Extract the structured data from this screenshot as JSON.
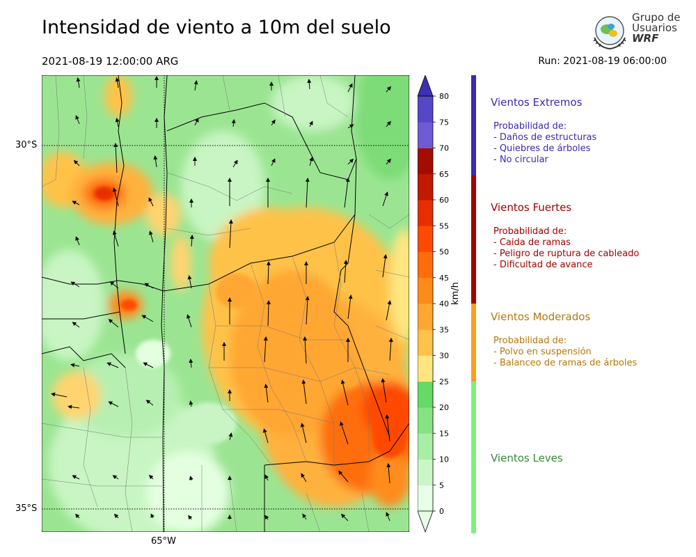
{
  "header": {
    "title": "Intensidad de viento a 10m del suelo",
    "valid_time": "2021-08-19 12:00:00 ARG",
    "run": "Run: 2021-08-19 06:00:00"
  },
  "logo": {
    "line1": "Grupo de",
    "line2": "Usuarios",
    "line3": "WRF"
  },
  "map": {
    "lat_labels": [
      "30°S",
      "35°S"
    ],
    "lon_labels": [
      "65°W"
    ]
  },
  "colorbar": {
    "units": "km/h",
    "ticks": [
      "0",
      "5",
      "10",
      "15",
      "20",
      "25",
      "30",
      "35",
      "40",
      "45",
      "50",
      "55",
      "60",
      "65",
      "70",
      "75",
      "80"
    ],
    "colors": [
      "#e6ffe6",
      "#c8f7c5",
      "#a8eea5",
      "#86e384",
      "#66d966",
      "#ffe680",
      "#ffc24a",
      "#ffa733",
      "#ff8c1a",
      "#ff6e0a",
      "#ff4a00",
      "#e62e00",
      "#c21a00",
      "#a30d00",
      "#6f5ad6",
      "#5547c8",
      "#3e2fb3"
    ],
    "scale": {
      "min": 0,
      "max": 80,
      "step": 5,
      "extend": "both"
    }
  },
  "categories": [
    {
      "title": "Vientos Extremos",
      "color": "#3a2ab0",
      "lines": [
        "Probabilidad de:",
        "- Daños de estructuras",
        "- Quiebres de árboles",
        "- No circular"
      ]
    },
    {
      "title": "Vientos Fuertes",
      "color": "#a30000",
      "lines": [
        "Probabilidad de:",
        "- Caida de ramas",
        "- Peligro de ruptura de cableado",
        "- Dificultad de avance"
      ]
    },
    {
      "title": "Vientos Moderados",
      "color": "#b8770a",
      "lines": [
        "Probabilidad de:",
        "- Polvo en suspensión",
        "- Balanceo de ramas de árboles"
      ]
    },
    {
      "title": "Vientos Leves",
      "color": "#3a8a3a",
      "lines": []
    }
  ]
}
